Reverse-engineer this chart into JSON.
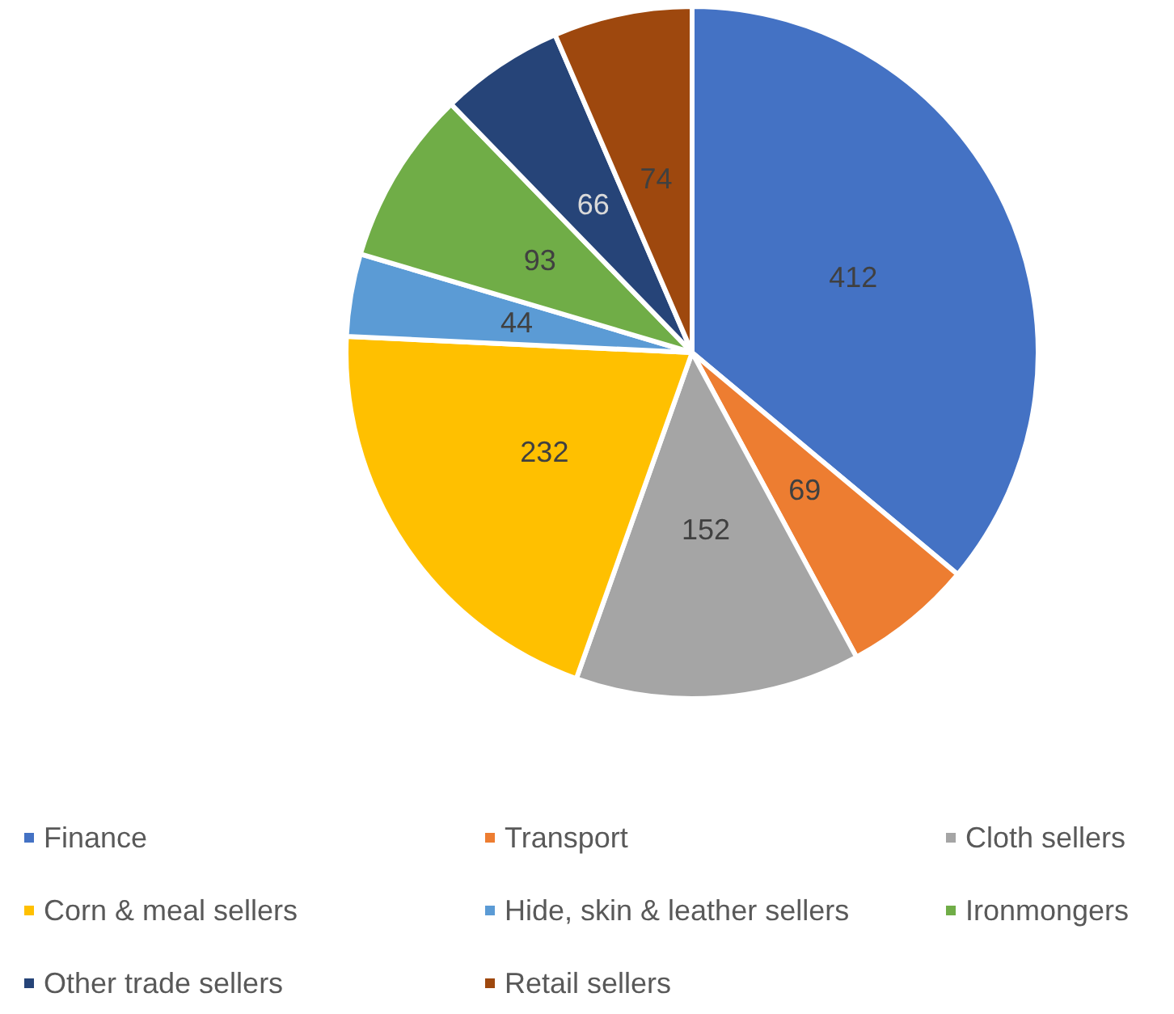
{
  "chart_data": {
    "type": "pie",
    "categories": [
      "Finance",
      "Transport",
      "Cloth sellers",
      "Corn & meal sellers",
      "Hide, skin & leather sellers",
      "Ironmongers",
      "Other trade sellers",
      "Retail sellers"
    ],
    "values": [
      412,
      69,
      152,
      232,
      44,
      93,
      66,
      74
    ],
    "colors": [
      "#4472c4",
      "#ed7d31",
      "#a5a5a5",
      "#ffc000",
      "#5b9bd5",
      "#70ad47",
      "#264478",
      "#9e480e"
    ],
    "data_labels": true,
    "legend": "bottom"
  }
}
